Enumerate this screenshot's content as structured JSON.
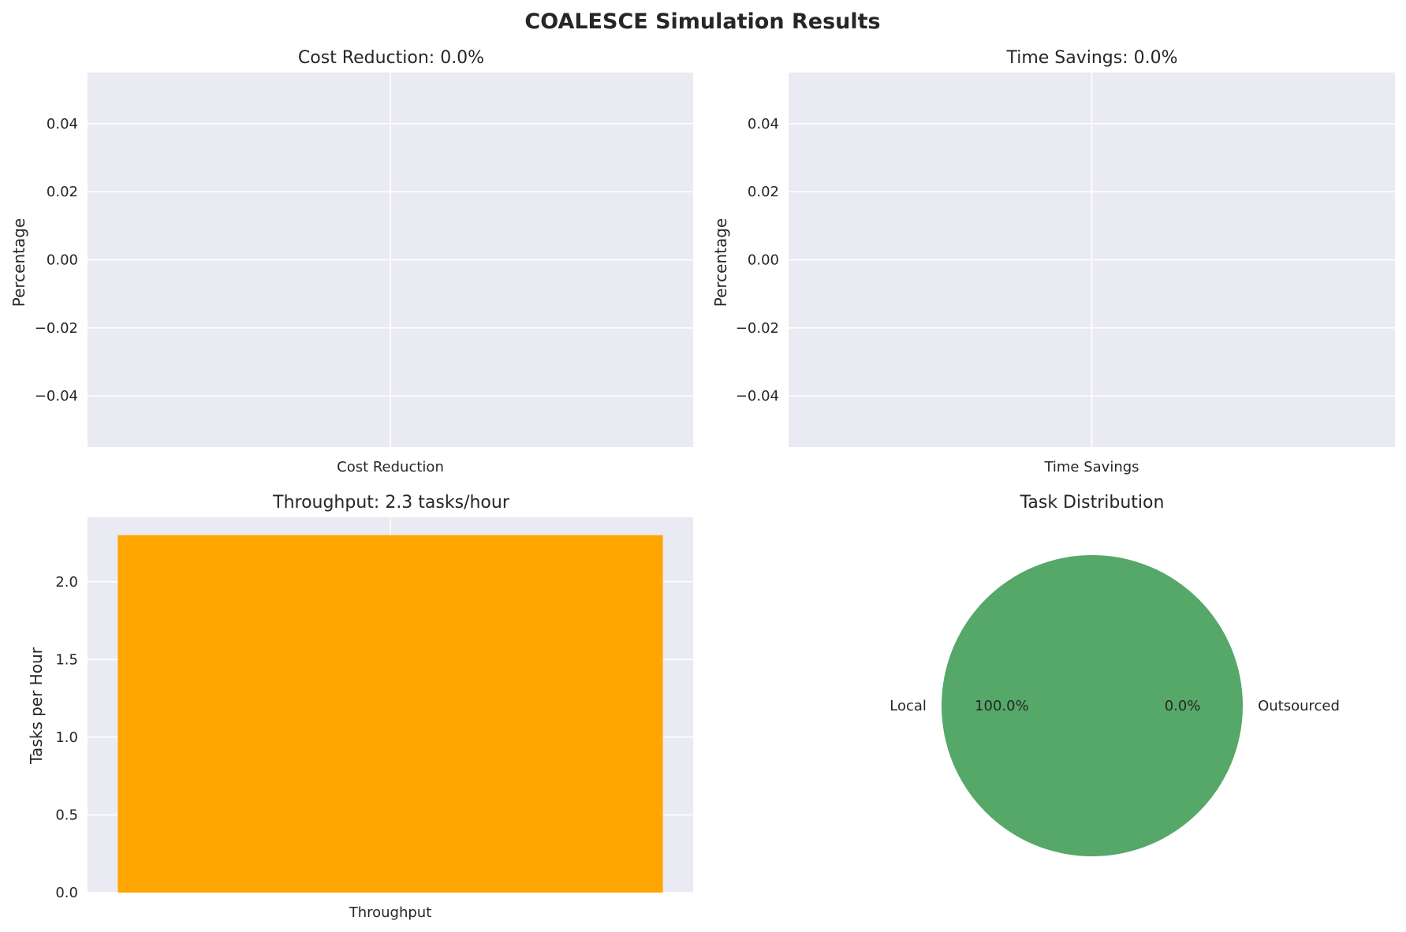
{
  "figure": {
    "suptitle": "COALESCE Simulation Results"
  },
  "chart_data": [
    {
      "type": "bar",
      "title": "Cost Reduction: 0.0%",
      "categories": [
        "Cost Reduction"
      ],
      "values": [
        0.0
      ],
      "xlabel": "",
      "ylabel": "Percentage",
      "ylim": [
        -0.055,
        0.055
      ],
      "yticks": [
        0.04,
        0.02,
        0.0,
        -0.02,
        -0.04
      ],
      "ytick_labels": [
        "0.04",
        "0.02",
        "0.00",
        "−0.02",
        "−0.04"
      ],
      "grid": true,
      "color": "#4c72b0"
    },
    {
      "type": "bar",
      "title": "Time Savings: 0.0%",
      "categories": [
        "Time Savings"
      ],
      "values": [
        0.0
      ],
      "xlabel": "",
      "ylabel": "Percentage",
      "ylim": [
        -0.055,
        0.055
      ],
      "yticks": [
        0.04,
        0.02,
        0.0,
        -0.02,
        -0.04
      ],
      "ytick_labels": [
        "0.04",
        "0.02",
        "0.00",
        "−0.02",
        "−0.04"
      ],
      "grid": true,
      "color": "#4c72b0"
    },
    {
      "type": "bar",
      "title": "Throughput: 2.3 tasks/hour",
      "categories": [
        "Throughput"
      ],
      "values": [
        2.3
      ],
      "xlabel": "",
      "ylabel": "Tasks per Hour",
      "ylim": [
        0,
        2.415
      ],
      "yticks": [
        2.0,
        1.5,
        1.0,
        0.5,
        0.0
      ],
      "ytick_labels": [
        "2.0",
        "1.5",
        "1.0",
        "0.5",
        "0.0"
      ],
      "grid": true,
      "color": "#ffa500"
    },
    {
      "type": "pie",
      "title": "Task Distribution",
      "labels": [
        "Local",
        "Outsourced"
      ],
      "values": [
        100.0,
        0.0
      ],
      "pct_labels": [
        "100.0%",
        "0.0%"
      ],
      "colors": [
        "#55a868",
        "#c44e52"
      ]
    }
  ]
}
